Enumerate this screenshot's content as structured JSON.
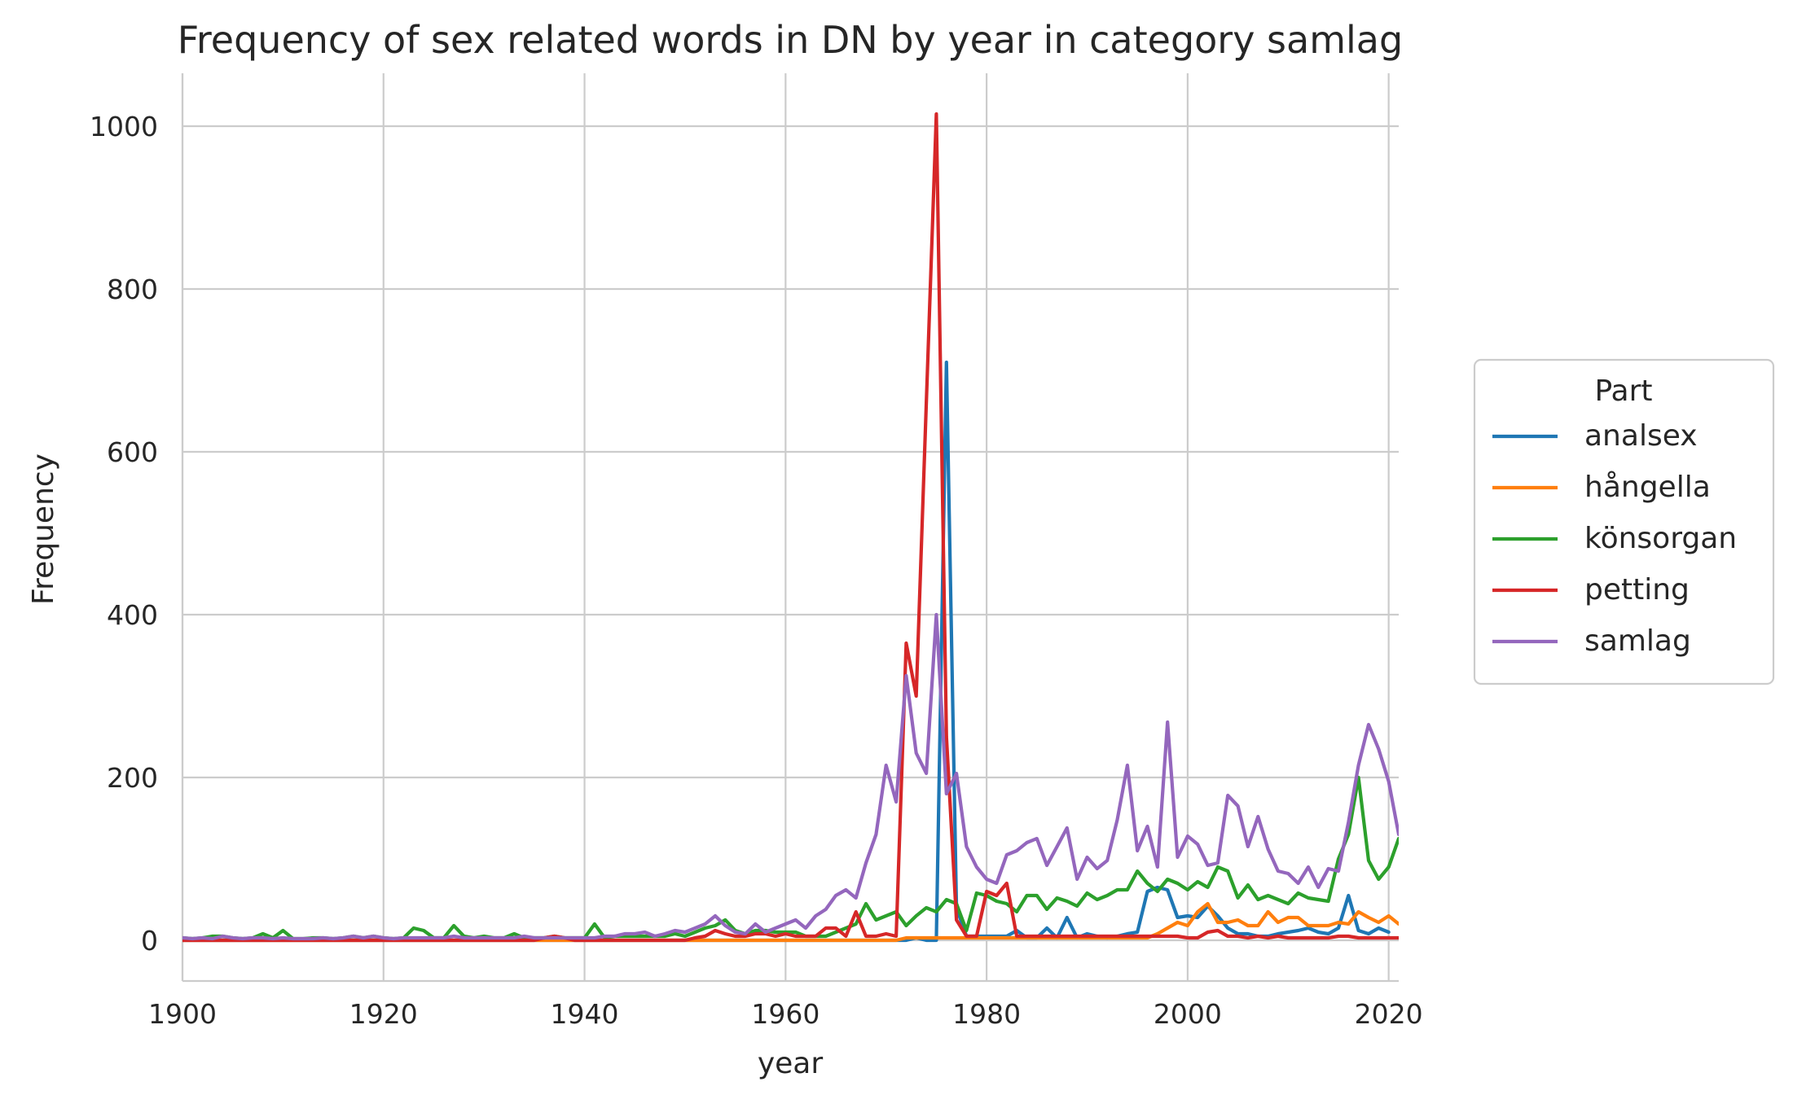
{
  "chart_data": {
    "type": "line",
    "title": "Frequency of sex related words in DN by year in category samlag",
    "xlabel": "year",
    "ylabel": "Frequency",
    "xlim": [
      1900,
      2021
    ],
    "ylim": [
      -50,
      1065
    ],
    "xticks": [
      1900,
      1920,
      1940,
      1960,
      1980,
      2000,
      2020
    ],
    "yticks": [
      0,
      200,
      400,
      600,
      800,
      1000
    ],
    "grid": true,
    "legend": {
      "title": "Part",
      "placement": "right-outside"
    },
    "x_start": 1900,
    "series": [
      {
        "name": "analsex",
        "color": "#1f77b4",
        "values": [
          0,
          0,
          0,
          0,
          0,
          0,
          0,
          0,
          0,
          0,
          0,
          0,
          0,
          0,
          0,
          0,
          0,
          0,
          0,
          0,
          0,
          0,
          0,
          0,
          0,
          0,
          0,
          0,
          0,
          0,
          0,
          0,
          0,
          0,
          0,
          0,
          0,
          0,
          0,
          0,
          0,
          0,
          0,
          0,
          0,
          0,
          0,
          0,
          0,
          0,
          0,
          0,
          0,
          0,
          0,
          0,
          0,
          0,
          0,
          0,
          0,
          0,
          0,
          0,
          0,
          0,
          0,
          0,
          0,
          0,
          0,
          0,
          0,
          3,
          0,
          0,
          710,
          40,
          5,
          5,
          5,
          5,
          5,
          12,
          3,
          3,
          15,
          3,
          28,
          3,
          8,
          5,
          3,
          5,
          8,
          10,
          60,
          65,
          62,
          28,
          30,
          28,
          42,
          30,
          15,
          8,
          8,
          5,
          5,
          8,
          10,
          12,
          15,
          10,
          8,
          15,
          55,
          12,
          8,
          15,
          10
        ]
      },
      {
        "name": "hångella",
        "color": "#ff7f0e",
        "values": [
          0,
          0,
          0,
          0,
          0,
          0,
          0,
          0,
          0,
          0,
          0,
          0,
          0,
          0,
          0,
          0,
          0,
          0,
          0,
          0,
          0,
          0,
          0,
          0,
          0,
          0,
          0,
          0,
          0,
          0,
          0,
          0,
          0,
          0,
          0,
          0,
          0,
          0,
          0,
          0,
          0,
          0,
          0,
          0,
          0,
          0,
          0,
          0,
          0,
          0,
          0,
          0,
          0,
          0,
          0,
          0,
          0,
          0,
          0,
          0,
          0,
          0,
          0,
          0,
          0,
          0,
          0,
          0,
          0,
          0,
          0,
          0,
          3,
          3,
          3,
          3,
          3,
          3,
          3,
          3,
          3,
          3,
          3,
          3,
          3,
          3,
          3,
          3,
          3,
          3,
          3,
          3,
          3,
          3,
          3,
          3,
          3,
          8,
          15,
          22,
          18,
          35,
          45,
          22,
          22,
          25,
          18,
          18,
          35,
          22,
          28,
          28,
          18,
          18,
          18,
          22,
          20,
          35,
          28,
          22,
          30,
          20
        ]
      },
      {
        "name": "könsorgan",
        "color": "#2ca02c",
        "values": [
          3,
          2,
          3,
          5,
          5,
          3,
          2,
          3,
          8,
          3,
          12,
          2,
          2,
          3,
          3,
          2,
          3,
          5,
          3,
          5,
          3,
          2,
          3,
          15,
          12,
          3,
          3,
          18,
          5,
          3,
          5,
          3,
          3,
          8,
          3,
          3,
          3,
          5,
          3,
          3,
          3,
          20,
          3,
          5,
          5,
          5,
          5,
          5,
          5,
          8,
          5,
          10,
          15,
          18,
          25,
          12,
          8,
          12,
          12,
          10,
          10,
          10,
          5,
          5,
          5,
          10,
          15,
          20,
          45,
          25,
          30,
          35,
          18,
          30,
          40,
          35,
          50,
          45,
          12,
          58,
          55,
          48,
          45,
          35,
          55,
          55,
          38,
          52,
          48,
          42,
          58,
          50,
          55,
          62,
          62,
          85,
          70,
          60,
          75,
          70,
          62,
          72,
          65,
          90,
          85,
          52,
          68,
          50,
          55,
          50,
          45,
          58,
          52,
          50,
          48,
          100,
          130,
          200,
          98,
          75,
          90,
          125
        ]
      },
      {
        "name": "petting",
        "color": "#d62728",
        "values": [
          0,
          0,
          0,
          0,
          0,
          0,
          0,
          0,
          0,
          0,
          0,
          0,
          0,
          0,
          0,
          0,
          0,
          0,
          0,
          0,
          0,
          0,
          0,
          0,
          0,
          0,
          0,
          0,
          0,
          0,
          0,
          0,
          0,
          0,
          0,
          0,
          3,
          5,
          3,
          0,
          0,
          0,
          0,
          0,
          0,
          0,
          0,
          0,
          0,
          0,
          0,
          3,
          5,
          12,
          8,
          5,
          5,
          8,
          8,
          5,
          8,
          5,
          5,
          5,
          15,
          15,
          5,
          35,
          5,
          5,
          8,
          5,
          365,
          300,
          660,
          1015,
          250,
          25,
          5,
          5,
          60,
          55,
          70,
          5,
          5,
          5,
          5,
          5,
          5,
          5,
          5,
          5,
          5,
          5,
          5,
          5,
          5,
          5,
          5,
          5,
          3,
          3,
          10,
          12,
          5,
          5,
          3,
          5,
          3,
          5,
          3,
          3,
          3,
          3,
          3,
          5,
          5,
          3,
          3,
          3,
          3,
          3
        ]
      },
      {
        "name": "samlag",
        "color": "#9467bd",
        "values": [
          3,
          2,
          3,
          2,
          5,
          3,
          2,
          3,
          3,
          2,
          3,
          2,
          2,
          2,
          3,
          2,
          3,
          5,
          3,
          5,
          3,
          2,
          3,
          3,
          3,
          3,
          3,
          5,
          3,
          3,
          3,
          3,
          3,
          3,
          5,
          3,
          3,
          3,
          3,
          3,
          3,
          3,
          5,
          5,
          8,
          8,
          10,
          5,
          8,
          12,
          10,
          15,
          20,
          30,
          18,
          10,
          8,
          20,
          10,
          15,
          20,
          25,
          15,
          30,
          38,
          55,
          62,
          52,
          95,
          130,
          215,
          170,
          325,
          230,
          205,
          400,
          180,
          205,
          115,
          90,
          75,
          70,
          105,
          110,
          120,
          125,
          92,
          115,
          138,
          75,
          102,
          88,
          98,
          148,
          215,
          110,
          140,
          90,
          268,
          102,
          128,
          118,
          92,
          95,
          178,
          165,
          115,
          152,
          112,
          85,
          82,
          70,
          90,
          65,
          88,
          85,
          145,
          215,
          265,
          235,
          195,
          130,
          190
        ]
      }
    ]
  }
}
